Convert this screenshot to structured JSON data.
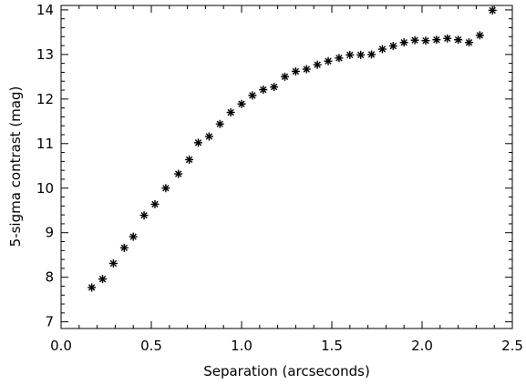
{
  "chart_data": {
    "type": "scatter",
    "marker": "asterisk",
    "xlabel": "Separation (arcseconds)",
    "ylabel": "5-sigma contrast (mag)",
    "xlim": [
      0.0,
      2.5
    ],
    "ylim": [
      6.85,
      14.1
    ],
    "xticks": [
      {
        "value": 0.0,
        "label": "0.0"
      },
      {
        "value": 0.5,
        "label": "0.5"
      },
      {
        "value": 1.0,
        "label": "1.0"
      },
      {
        "value": 1.5,
        "label": "1.5"
      },
      {
        "value": 2.0,
        "label": "2.0"
      },
      {
        "value": 2.5,
        "label": "2.5"
      }
    ],
    "yticks": [
      {
        "value": 7,
        "label": "7"
      },
      {
        "value": 8,
        "label": "8"
      },
      {
        "value": 9,
        "label": "9"
      },
      {
        "value": 10,
        "label": "10"
      },
      {
        "value": 11,
        "label": "11"
      },
      {
        "value": 12,
        "label": "12"
      },
      {
        "value": 13,
        "label": "13"
      },
      {
        "value": 14,
        "label": "14"
      }
    ],
    "x_minor_step": 0.1,
    "y_minor_step": 0.2,
    "grid": false,
    "series": [
      {
        "color": "#000000",
        "x": [
          0.17,
          0.23,
          0.29,
          0.35,
          0.4,
          0.46,
          0.52,
          0.58,
          0.65,
          0.71,
          0.76,
          0.82,
          0.88,
          0.94,
          1.0,
          1.06,
          1.12,
          1.18,
          1.24,
          1.3,
          1.36,
          1.42,
          1.48,
          1.54,
          1.6,
          1.66,
          1.72,
          1.78,
          1.84,
          1.9,
          1.96,
          2.02,
          2.08,
          2.14,
          2.2,
          2.26,
          2.32,
          2.39
        ],
        "y": [
          7.77,
          7.96,
          8.31,
          8.66,
          8.91,
          9.39,
          9.64,
          10.0,
          10.32,
          10.64,
          11.02,
          11.16,
          11.44,
          11.7,
          11.89,
          12.08,
          12.21,
          12.27,
          12.5,
          12.62,
          12.67,
          12.77,
          12.85,
          12.92,
          12.99,
          12.99,
          13.0,
          13.12,
          13.19,
          13.27,
          13.32,
          13.31,
          13.33,
          13.36,
          13.33,
          13.27,
          13.43,
          13.99
        ]
      }
    ]
  }
}
